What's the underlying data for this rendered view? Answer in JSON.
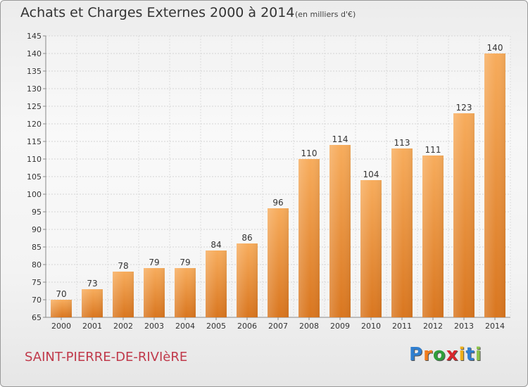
{
  "header": {
    "title": "Achats et Charges Externes 2000 à 2014",
    "subtitle": "(en milliers d'€)"
  },
  "footer": {
    "commune": "SAINT-PIERRE-DE-RIVIèRE",
    "brand": "Proxiti",
    "brand_letters": [
      {
        "char": "P",
        "color": "#2f7fd0"
      },
      {
        "char": "r",
        "color": "#f07c1c"
      },
      {
        "char": "o",
        "color": "#2f9e3a"
      },
      {
        "char": "x",
        "color": "#d8262b"
      },
      {
        "char": "i",
        "color": "#f0b019"
      },
      {
        "char": "t",
        "color": "#2f7fd0"
      },
      {
        "char": "i",
        "color": "#8bc34a"
      }
    ]
  },
  "chart_data": {
    "type": "bar",
    "title": "Achats et Charges Externes 2000 à 2014",
    "subtitle": "(en milliers d'€)",
    "categories": [
      "2000",
      "2001",
      "2002",
      "2003",
      "2004",
      "2005",
      "2006",
      "2007",
      "2008",
      "2009",
      "2010",
      "2011",
      "2012",
      "2013",
      "2014"
    ],
    "values": [
      70,
      73,
      78,
      79,
      79,
      84,
      86,
      96,
      110,
      114,
      104,
      113,
      111,
      123,
      140
    ],
    "ylim": [
      65,
      145
    ],
    "yticks": [
      65,
      70,
      75,
      80,
      85,
      90,
      95,
      100,
      105,
      110,
      115,
      120,
      125,
      130,
      135,
      140,
      145
    ],
    "grid": true,
    "bar_color": "#f5a24e",
    "bar_color_dark": "#d9761f"
  }
}
